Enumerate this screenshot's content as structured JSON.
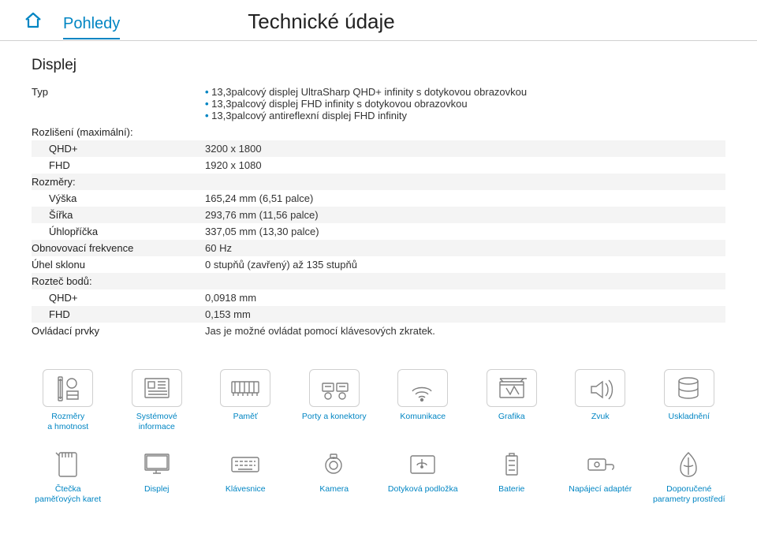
{
  "header": {
    "breadcrumb": "Pohledy",
    "title": "Technické údaje"
  },
  "section": {
    "title": "Displej",
    "type_label": "Typ",
    "type_bullets": [
      "13,3palcový displej UltraSharp QHD+ infinity s dotykovou obrazovkou",
      "13,3palcový displej FHD infinity s dotykovou obrazovkou",
      "13,3palcový antireflexní displej FHD infinity"
    ],
    "rows": [
      {
        "label": "Rozlišení (maximální):",
        "value": "",
        "sub": false,
        "band": false
      },
      {
        "label": "QHD+",
        "value": "3200 x 1800",
        "sub": true,
        "band": true
      },
      {
        "label": "FHD",
        "value": "1920 x 1080",
        "sub": true,
        "band": false
      },
      {
        "label": "Rozměry:",
        "value": "",
        "sub": false,
        "band": true
      },
      {
        "label": "Výška",
        "value": "165,24 mm (6,51 palce)",
        "sub": true,
        "band": false
      },
      {
        "label": "Šířka",
        "value": "293,76 mm (11,56 palce)",
        "sub": true,
        "band": true
      },
      {
        "label": "Úhlopříčka",
        "value": "337,05 mm (13,30 palce)",
        "sub": true,
        "band": false
      },
      {
        "label": "Obnovovací frekvence",
        "value": "60 Hz",
        "sub": false,
        "band": true
      },
      {
        "label": "Úhel sklonu",
        "value": "0 stupňů (zavřený) až 135 stupňů",
        "sub": false,
        "band": false
      },
      {
        "label": "Rozteč bodů:",
        "value": "",
        "sub": false,
        "band": true
      },
      {
        "label": "QHD+",
        "value": "0,0918 mm",
        "sub": true,
        "band": false
      },
      {
        "label": "FHD",
        "value": "0,153 mm",
        "sub": true,
        "band": true
      },
      {
        "label": "Ovládací prvky",
        "value": "Jas je možné ovládat pomocí klávesových zkratek.",
        "sub": false,
        "band": false
      }
    ]
  },
  "nav": {
    "row1": [
      {
        "id": "dims",
        "label": "Rozměry\na hmotnost"
      },
      {
        "id": "sysinfo",
        "label": "Systémové\ninformace"
      },
      {
        "id": "mem",
        "label": "Paměť"
      },
      {
        "id": "ports",
        "label": "Porty a konektory"
      },
      {
        "id": "comm",
        "label": "Komunikace"
      },
      {
        "id": "gfx",
        "label": "Grafika"
      },
      {
        "id": "audio",
        "label": "Zvuk"
      },
      {
        "id": "storage",
        "label": "Uskladnění"
      }
    ],
    "row2": [
      {
        "id": "cardrd",
        "label": "Čtečka\npaměťových karet"
      },
      {
        "id": "display",
        "label": "Displej"
      },
      {
        "id": "kbd",
        "label": "Klávesnice"
      },
      {
        "id": "camera",
        "label": "Kamera"
      },
      {
        "id": "touch",
        "label": "Dotyková podložka"
      },
      {
        "id": "battery",
        "label": "Baterie"
      },
      {
        "id": "power",
        "label": "Napájecí adaptér"
      },
      {
        "id": "env",
        "label": "Doporučené\nparametry prostředí"
      }
    ]
  },
  "colors": {
    "accent": "#0085c3",
    "band": "#f4f4f4",
    "iconStroke": "#808080",
    "border": "#cfcfcf"
  }
}
